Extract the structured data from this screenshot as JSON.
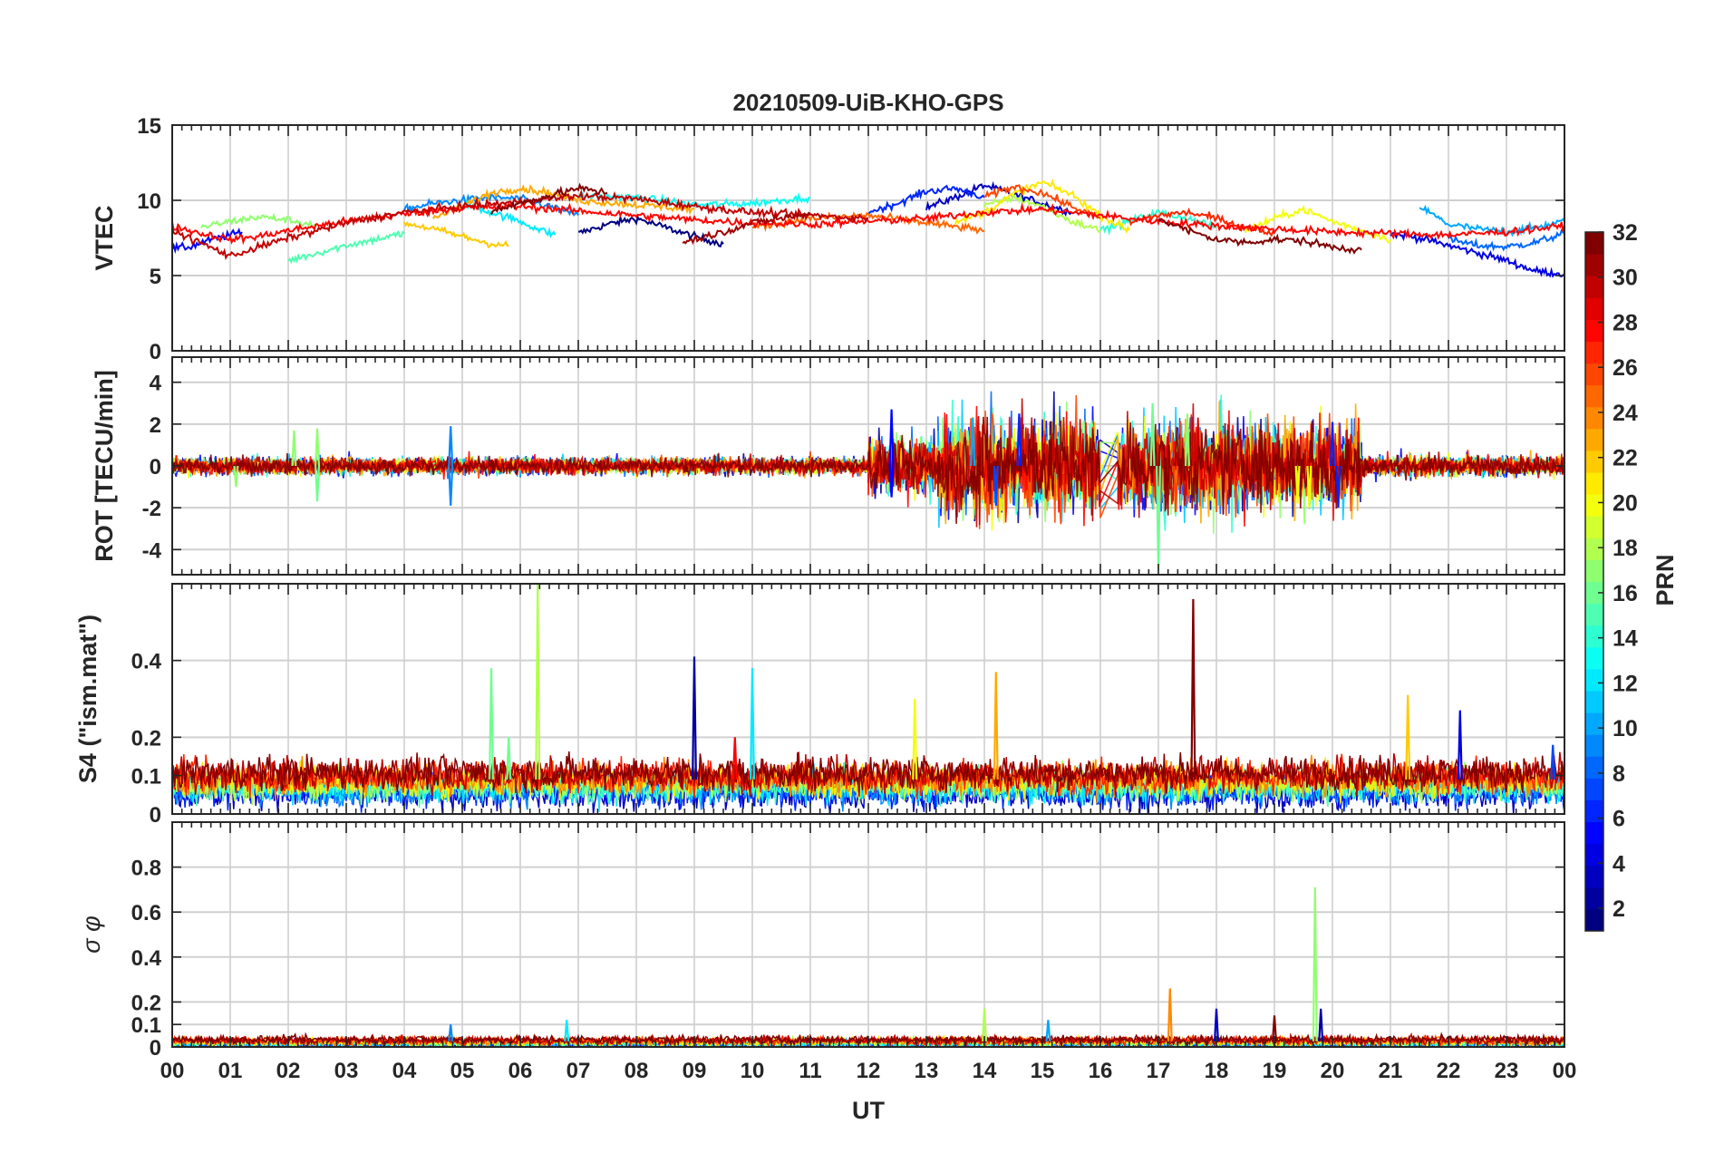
{
  "title": "20210509-UiB-KHO-GPS",
  "xlabel": "UT",
  "x_tick_labels": [
    "00",
    "01",
    "02",
    "03",
    "04",
    "05",
    "06",
    "07",
    "08",
    "09",
    "10",
    "11",
    "12",
    "13",
    "14",
    "15",
    "16",
    "17",
    "18",
    "19",
    "20",
    "21",
    "22",
    "23",
    "00"
  ],
  "colorbar": {
    "label": "PRN",
    "range": [
      1,
      32
    ],
    "tick_labels": [
      "2",
      "4",
      "6",
      "8",
      "10",
      "12",
      "14",
      "16",
      "18",
      "20",
      "22",
      "24",
      "26",
      "28",
      "30",
      "32"
    ],
    "colormap": "jet"
  },
  "chart_data": [
    {
      "type": "line",
      "ylabel": "VTEC",
      "xlim": [
        0,
        24
      ],
      "ylim": [
        0,
        15
      ],
      "yticks": [
        "0",
        "5",
        "10",
        "15"
      ],
      "grid": true,
      "color_by": "PRN",
      "series": [
        {
          "prn": 1,
          "x": [
            7.0,
            7.5,
            8.0,
            8.5,
            9.0,
            9.5
          ],
          "y": [
            7.8,
            8.4,
            8.8,
            8.2,
            7.6,
            7.1
          ]
        },
        {
          "prn": 3,
          "x": [
            13.0,
            13.5,
            14.0,
            14.5,
            15.0,
            15.5
          ],
          "y": [
            9.5,
            10.2,
            11.0,
            10.4,
            9.8,
            9.2
          ]
        },
        {
          "prn": 4,
          "x": [
            21.0,
            21.5,
            22.0,
            22.5,
            23.0,
            23.5,
            24.0
          ],
          "y": [
            7.8,
            7.5,
            7.0,
            6.5,
            6.0,
            5.3,
            5.1
          ]
        },
        {
          "prn": 5,
          "x": [
            0.0,
            0.3,
            0.6,
            0.9,
            1.2
          ],
          "y": [
            6.8,
            6.9,
            7.3,
            7.6,
            7.9
          ]
        },
        {
          "prn": 6,
          "x": [
            12.0,
            12.5,
            13.0,
            13.5,
            14.0
          ],
          "y": [
            9.2,
            9.8,
            10.6,
            10.8,
            10.2
          ]
        },
        {
          "prn": 8,
          "x": [
            22.0,
            22.5,
            23.0,
            23.5,
            24.0
          ],
          "y": [
            7.4,
            7.0,
            6.9,
            7.2,
            7.8
          ]
        },
        {
          "prn": 9,
          "x": [
            4.0,
            4.5,
            5.0,
            5.5,
            6.0,
            6.5,
            7.0
          ],
          "y": [
            9.4,
            9.8,
            10.0,
            10.2,
            10.1,
            9.6,
            9.0
          ]
        },
        {
          "prn": 10,
          "x": [
            21.5,
            22.0,
            22.5,
            23.0,
            23.5,
            24.0
          ],
          "y": [
            9.6,
            8.4,
            8.1,
            7.9,
            8.2,
            8.6
          ]
        },
        {
          "prn": 12,
          "x": [
            5.0,
            5.5,
            6.0,
            6.3,
            6.6
          ],
          "y": [
            9.8,
            9.2,
            8.6,
            8.1,
            7.7
          ]
        },
        {
          "prn": 13,
          "x": [
            7.0,
            8.0,
            9.0,
            10.0,
            11.0
          ],
          "y": [
            10.3,
            10.2,
            9.7,
            9.8,
            10.2
          ]
        },
        {
          "prn": 14,
          "x": [
            16.0,
            16.5,
            17.0,
            17.5,
            18.0
          ],
          "y": [
            8.0,
            8.6,
            9.2,
            8.8,
            8.2
          ]
        },
        {
          "prn": 15,
          "x": [
            2.0,
            2.5,
            3.0,
            3.5,
            4.0
          ],
          "y": [
            6.0,
            6.5,
            7.0,
            7.4,
            7.8
          ]
        },
        {
          "prn": 17,
          "x": [
            0.5,
            1.0,
            1.5,
            2.0,
            2.5
          ],
          "y": [
            8.2,
            8.6,
            8.9,
            8.7,
            8.3
          ]
        },
        {
          "prn": 18,
          "x": [
            14.0,
            14.5,
            15.0,
            15.5,
            16.0
          ],
          "y": [
            9.6,
            10.2,
            9.6,
            8.6,
            8.0
          ]
        },
        {
          "prn": 20,
          "x": [
            18.5,
            19.0,
            19.5,
            20.0,
            20.5,
            21.0
          ],
          "y": [
            8.0,
            8.8,
            9.4,
            8.6,
            8.0,
            7.4
          ]
        },
        {
          "prn": 21,
          "x": [
            13.5,
            14.0,
            14.5,
            15.0,
            15.5,
            16.0,
            16.5
          ],
          "y": [
            8.5,
            9.2,
            10.4,
            11.2,
            10.4,
            9.0,
            8.0
          ]
        },
        {
          "prn": 22,
          "x": [
            4.0,
            4.5,
            5.0,
            5.5,
            5.8
          ],
          "y": [
            8.5,
            8.1,
            7.6,
            7.1,
            7.0
          ]
        },
        {
          "prn": 23,
          "x": [
            4.5,
            5.0,
            5.5,
            6.0,
            6.5,
            7.0,
            8.0,
            9.0
          ],
          "y": [
            8.8,
            9.6,
            10.5,
            10.8,
            10.5,
            10.0,
            9.7,
            9.4
          ]
        },
        {
          "prn": 25,
          "x": [
            10.0,
            11.0,
            12.0,
            13.0,
            14.0
          ],
          "y": [
            8.2,
            8.8,
            9.0,
            8.5,
            8.0
          ]
        },
        {
          "prn": 26,
          "x": [
            14.0,
            14.5,
            15.0,
            15.5,
            16.0
          ],
          "y": [
            10.2,
            10.9,
            10.5,
            9.6,
            8.8
          ]
        },
        {
          "prn": 27,
          "x": [
            16.5,
            17.0,
            17.5,
            18.0,
            18.5,
            19.0
          ],
          "y": [
            8.5,
            9.0,
            9.2,
            8.8,
            8.2,
            7.8
          ]
        },
        {
          "prn": 28,
          "x": [
            0.0,
            0.5,
            1.0,
            1.5,
            2.0,
            3.0,
            4.0,
            5.0,
            6.0,
            7.0,
            8.0,
            9.0,
            10.0,
            11.0,
            12.0,
            13.0,
            14.0,
            15.0,
            16.0,
            17.0,
            18.0,
            19.0,
            20.0,
            21.0,
            22.0,
            23.0,
            24.0
          ],
          "y": [
            8.3,
            7.8,
            7.4,
            7.6,
            8.0,
            8.6,
            9.1,
            9.5,
            9.6,
            9.3,
            9.0,
            8.7,
            8.5,
            8.4,
            8.6,
            8.8,
            9.2,
            9.4,
            9.0,
            8.6,
            8.3,
            8.1,
            7.9,
            7.8,
            7.7,
            7.9,
            8.3
          ]
        },
        {
          "prn": 30,
          "x": [
            0.0,
            1.0,
            2.0,
            3.0,
            4.0,
            5.0,
            6.0,
            7.0,
            8.0,
            9.0,
            10.0,
            11.0,
            12.0
          ],
          "y": [
            8.0,
            6.3,
            7.5,
            8.5,
            9.2,
            9.6,
            9.9,
            10.3,
            10.1,
            9.6,
            9.2,
            9.0,
            8.8
          ]
        },
        {
          "prn": 31,
          "x": [
            8.8,
            9.5,
            10.0,
            10.5,
            11.0
          ],
          "y": [
            7.2,
            7.9,
            8.5,
            8.8,
            9.1
          ]
        },
        {
          "prn": 32,
          "x": [
            5.5,
            6.0,
            6.5,
            7.0,
            7.5
          ],
          "y": [
            9.3,
            9.8,
            10.3,
            10.8,
            10.5
          ]
        },
        {
          "prn": 32,
          "x": [
            17.0,
            17.5,
            18.0,
            18.5,
            19.0,
            19.5,
            20.0,
            20.5
          ],
          "y": [
            8.8,
            8.0,
            7.4,
            7.2,
            7.4,
            7.3,
            6.9,
            6.7
          ]
        }
      ]
    },
    {
      "type": "line",
      "ylabel": "ROT [TECU/min]",
      "xlim": [
        0,
        24
      ],
      "ylim": [
        -5.2,
        5.2
      ],
      "yticks": [
        "-4",
        "-2",
        "0",
        "2",
        "4"
      ],
      "grid": true,
      "color_by": "PRN",
      "noise_bands": [
        {
          "x_range": [
            0,
            12
          ],
          "amplitude": 0.25
        },
        {
          "x_range": [
            12,
            13.2
          ],
          "amplitude": 0.8
        },
        {
          "x_range": [
            13.2,
            16.0
          ],
          "amplitude": 1.4
        },
        {
          "x_range": [
            16.3,
            20.5
          ],
          "amplitude": 1.3
        },
        {
          "x_range": [
            20.5,
            24
          ],
          "amplitude": 0.3
        }
      ],
      "spikes": [
        {
          "x": 1.1,
          "y": -1.0,
          "prn": 17
        },
        {
          "x": 2.1,
          "y": 1.7,
          "prn": 17
        },
        {
          "x": 2.5,
          "y": 1.8,
          "prn": 17
        },
        {
          "x": 2.5,
          "y": -1.7,
          "prn": 16
        },
        {
          "x": 4.8,
          "y": 1.9,
          "prn": 9
        },
        {
          "x": 4.8,
          "y": -1.9,
          "prn": 9
        },
        {
          "x": 12.4,
          "y": 2.7,
          "prn": 5
        },
        {
          "x": 12.4,
          "y": -1.5,
          "prn": 5
        },
        {
          "x": 13.8,
          "y": 2.3,
          "prn": 10
        },
        {
          "x": 14.2,
          "y": -1.9,
          "prn": 7
        },
        {
          "x": 14.6,
          "y": 2.5,
          "prn": 6
        },
        {
          "x": 16.9,
          "y": 3.0,
          "prn": 16
        },
        {
          "x": 17.0,
          "y": -5.0,
          "prn": 16
        },
        {
          "x": 17.3,
          "y": -2.2,
          "prn": 26
        },
        {
          "x": 17.5,
          "y": 2.5,
          "prn": 17
        },
        {
          "x": 19.4,
          "y": -1.8,
          "prn": 20
        },
        {
          "x": 19.6,
          "y": -2.0,
          "prn": 20
        },
        {
          "x": 20.0,
          "y": 2.1,
          "prn": 6
        },
        {
          "x": 20.1,
          "y": -2.0,
          "prn": 6
        }
      ]
    },
    {
      "type": "line",
      "ylabel": "S4 (\"ism.mat\")",
      "xlim": [
        0,
        24
      ],
      "ylim": [
        0,
        0.6
      ],
      "yticks": [
        "0",
        "0.1",
        "0.2",
        "0.4"
      ],
      "grid": true,
      "color_by": "PRN",
      "baseline_range": [
        0.03,
        0.15
      ],
      "spikes": [
        {
          "x": 5.5,
          "y": 0.38,
          "prn": 16
        },
        {
          "x": 5.8,
          "y": 0.2,
          "prn": 16
        },
        {
          "x": 6.3,
          "y": 0.6,
          "prn": 18
        },
        {
          "x": 9.0,
          "y": 0.41,
          "prn": 2
        },
        {
          "x": 9.7,
          "y": 0.2,
          "prn": 28
        },
        {
          "x": 10.0,
          "y": 0.38,
          "prn": 12
        },
        {
          "x": 12.8,
          "y": 0.3,
          "prn": 20
        },
        {
          "x": 14.2,
          "y": 0.37,
          "prn": 23
        },
        {
          "x": 17.6,
          "y": 0.56,
          "prn": 32
        },
        {
          "x": 21.3,
          "y": 0.31,
          "prn": 22
        },
        {
          "x": 22.2,
          "y": 0.27,
          "prn": 4
        },
        {
          "x": 23.8,
          "y": 0.18,
          "prn": 7
        }
      ]
    },
    {
      "type": "line",
      "ylabel": "σ φ",
      "xlim": [
        0,
        24
      ],
      "ylim": [
        0,
        1.0
      ],
      "yticks": [
        "0",
        "0.1",
        "0.2",
        "0.4",
        "0.6",
        "0.8"
      ],
      "grid": true,
      "color_by": "PRN",
      "baseline_range": [
        0.0,
        0.05
      ],
      "spikes": [
        {
          "x": 4.8,
          "y": 0.1,
          "prn": 9
        },
        {
          "x": 6.8,
          "y": 0.12,
          "prn": 12
        },
        {
          "x": 14.0,
          "y": 0.17,
          "prn": 18
        },
        {
          "x": 15.1,
          "y": 0.12,
          "prn": 10
        },
        {
          "x": 17.2,
          "y": 0.26,
          "prn": 24
        },
        {
          "x": 18.0,
          "y": 0.17,
          "prn": 3
        },
        {
          "x": 19.0,
          "y": 0.14,
          "prn": 32
        },
        {
          "x": 19.7,
          "y": 0.71,
          "prn": 17
        },
        {
          "x": 19.8,
          "y": 0.17,
          "prn": 2
        }
      ]
    }
  ]
}
